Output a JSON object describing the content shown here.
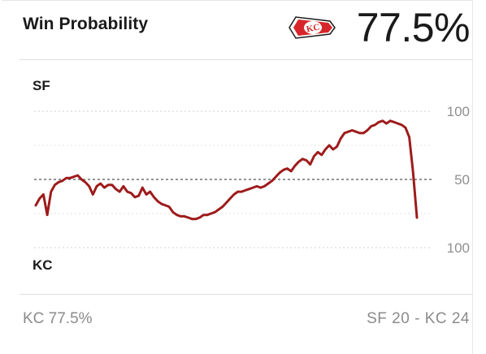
{
  "header": {
    "title": "Win Probability",
    "team_logo": "kc-chiefs-arrowhead-icon",
    "probability": "77.5%"
  },
  "chart": {
    "team_top": "SF",
    "team_bottom": "KC",
    "tick_top": "100",
    "tick_mid": "50",
    "tick_bottom": "100"
  },
  "footer": {
    "left": "KC 77.5%",
    "score_home": "SF 20",
    "score_sep": " - ",
    "score_away": "KC 24"
  },
  "colors": {
    "line": "#9e1b1b",
    "accent_red": "#d7262b",
    "midline": "#555555",
    "gridline": "#d0d0d0"
  },
  "chart_data": {
    "type": "line",
    "xlabel": "",
    "ylabel": "",
    "ylim": [
      -100,
      100
    ],
    "note_axis": "positive = SF win probability above 50 line, negative = KC",
    "x": [
      0,
      1,
      2,
      3,
      4,
      5,
      6,
      7,
      8,
      9,
      10,
      11,
      12,
      13,
      14,
      15,
      16,
      17,
      18,
      19,
      20,
      21,
      22,
      23,
      24,
      25,
      26,
      27,
      28,
      29,
      30,
      31,
      32,
      33,
      34,
      35,
      36,
      37,
      38,
      39,
      40,
      41,
      42,
      43,
      44,
      45,
      46,
      47,
      48,
      49,
      50,
      51,
      52,
      53,
      54,
      55,
      56,
      57,
      58,
      59,
      60,
      61,
      62,
      63,
      64,
      65,
      66,
      67,
      68,
      69,
      70,
      71,
      72,
      73,
      74,
      75,
      76,
      77,
      78,
      79,
      80,
      81,
      82,
      83,
      84,
      85,
      86,
      87,
      88,
      89,
      90,
      91,
      92,
      93,
      94,
      95,
      96,
      97,
      98,
      99,
      100
    ],
    "series": [
      {
        "values": [
          31,
          36,
          39,
          24,
          41,
          46,
          48,
          49,
          51,
          51,
          52,
          53,
          50,
          48,
          45,
          39,
          45,
          47,
          44,
          46,
          46,
          43,
          41,
          45,
          41,
          40,
          37,
          38,
          44,
          39,
          41,
          37,
          34,
          32,
          31,
          30,
          26,
          24,
          23,
          23,
          22,
          21,
          21,
          22,
          24,
          24,
          25,
          26,
          28,
          30,
          33,
          36,
          39,
          41,
          41,
          42,
          43,
          44,
          45,
          44,
          45,
          47,
          49,
          52,
          55,
          57,
          58,
          56,
          60,
          63,
          65,
          64,
          61,
          67,
          70,
          68,
          72,
          75,
          72,
          74,
          80,
          84,
          85,
          86,
          85,
          84,
          84,
          86,
          89,
          90,
          92,
          93,
          91,
          93,
          92,
          91,
          90,
          88,
          81,
          55,
          22
        ]
      }
    ]
  }
}
